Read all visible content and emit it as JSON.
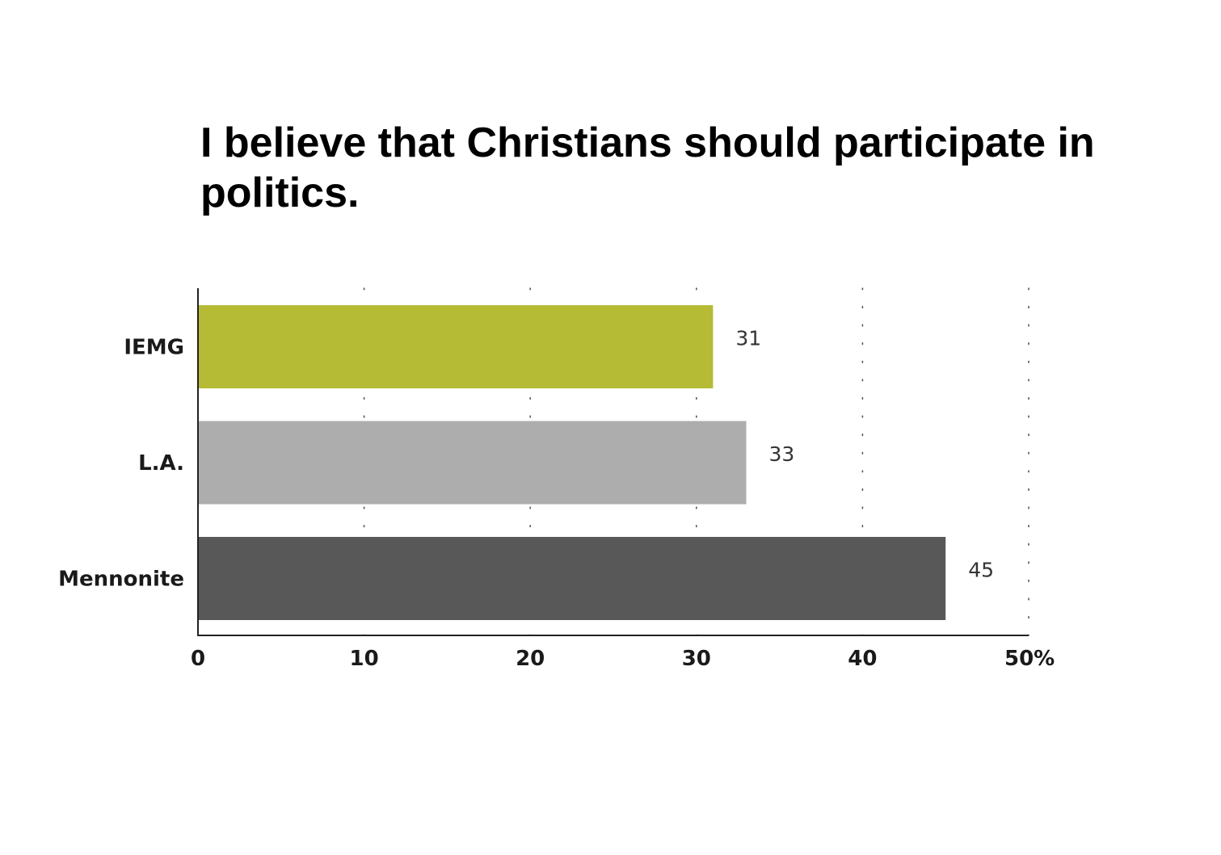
{
  "chart_data": {
    "type": "bar",
    "orientation": "horizontal",
    "title": "I believe that Christians should participate in politics.",
    "xlabel": "",
    "ylabel": "",
    "categories": [
      "IEMG",
      "L.A.",
      "Mennonite"
    ],
    "values": [
      31,
      33,
      45
    ],
    "value_labels": [
      "31",
      "33",
      "45"
    ],
    "colors": [
      "#b5bb35",
      "#adadad",
      "#585858"
    ],
    "xlim": [
      0,
      50
    ],
    "x_ticks": [
      0,
      10,
      20,
      30,
      40,
      50
    ],
    "x_tick_labels": [
      "0",
      "10",
      "20",
      "30",
      "40",
      "50%"
    ],
    "grid": "vertical-dotted",
    "legend": "none"
  }
}
